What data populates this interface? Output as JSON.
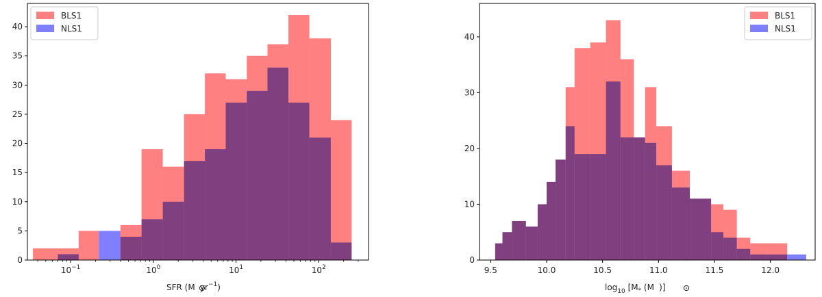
{
  "chart_data": [
    {
      "type": "bar",
      "subtype": "histogram-overlay",
      "xscale": "log",
      "xlim": [
        0.03,
        400
      ],
      "ylim": [
        0,
        44
      ],
      "xlabel_main": "SFR (M",
      "xlabel_unit": "yr",
      "xlabel_exp": "−1",
      "xlabel_close": ")",
      "xticks": [
        {
          "value": 0.1,
          "base": "10",
          "exp": "−1"
        },
        {
          "value": 1,
          "base": "10",
          "exp": "0"
        },
        {
          "value": 10,
          "base": "10",
          "exp": "1"
        },
        {
          "value": 100,
          "base": "10",
          "exp": "2"
        }
      ],
      "yticks": [
        0,
        5,
        10,
        15,
        20,
        25,
        30,
        35,
        40
      ],
      "legend_position": "top-left",
      "bin_edges": [
        0.035,
        0.07,
        0.125,
        0.22,
        0.4,
        0.72,
        1.3,
        2.35,
        4.2,
        7.5,
        13.5,
        24,
        43,
        77,
        140,
        250,
        310
      ],
      "series": [
        {
          "name": "BLS1",
          "color": "#ff8080",
          "values": [
            2,
            2,
            5,
            0,
            6,
            19,
            16,
            25,
            32,
            31,
            35,
            37,
            42,
            38,
            24,
            0
          ]
        },
        {
          "name": "NLS1",
          "color": "#8080ff",
          "values": [
            0,
            1,
            0,
            5,
            4,
            7,
            10,
            17,
            19,
            27,
            29,
            33,
            27,
            21,
            3,
            0
          ]
        }
      ]
    },
    {
      "type": "bar",
      "subtype": "histogram-overlay",
      "xscale": "linear",
      "xlim": [
        9.4,
        12.4
      ],
      "ylim": [
        0,
        46
      ],
      "xlabel_main": "log",
      "xlabel_sub": "10",
      "xlabel_rest": " [M",
      "xlabel_star": "*",
      "xlabel_mid": " (M",
      "xlabel_close": ")]",
      "xticks": [
        {
          "value": 9.5,
          "label": "9.5"
        },
        {
          "value": 10.0,
          "label": "10.0"
        },
        {
          "value": 10.5,
          "label": "10.5"
        },
        {
          "value": 11.0,
          "label": "11.0"
        },
        {
          "value": 11.5,
          "label": "11.5"
        },
        {
          "value": 12.0,
          "label": "12.0"
        }
      ],
      "yticks": [
        0,
        10,
        20,
        30,
        40
      ],
      "legend_position": "top-right",
      "bin_edges": [
        9.54,
        9.605,
        9.69,
        9.815,
        9.92,
        10.0,
        10.08,
        10.17,
        10.25,
        10.39,
        10.53,
        10.66,
        10.78,
        10.88,
        10.98,
        11.12,
        11.28,
        11.47,
        11.58,
        11.7,
        11.82,
        11.96,
        12.15,
        12.32
      ],
      "series": [
        {
          "name": "BLS1",
          "color": "#ff8080",
          "values": [
            3,
            5,
            7,
            6,
            10,
            14,
            18,
            31,
            38,
            39,
            43,
            36,
            22,
            31,
            24,
            16,
            11,
            10,
            9,
            4,
            3,
            3,
            0
          ]
        },
        {
          "name": "NLS1",
          "color": "#8080ff",
          "values": [
            3,
            5,
            7,
            6,
            10,
            14,
            18,
            24,
            19,
            19,
            32,
            22,
            22,
            21,
            17,
            13,
            11,
            5,
            4,
            2,
            1,
            1,
            1
          ]
        }
      ]
    }
  ]
}
